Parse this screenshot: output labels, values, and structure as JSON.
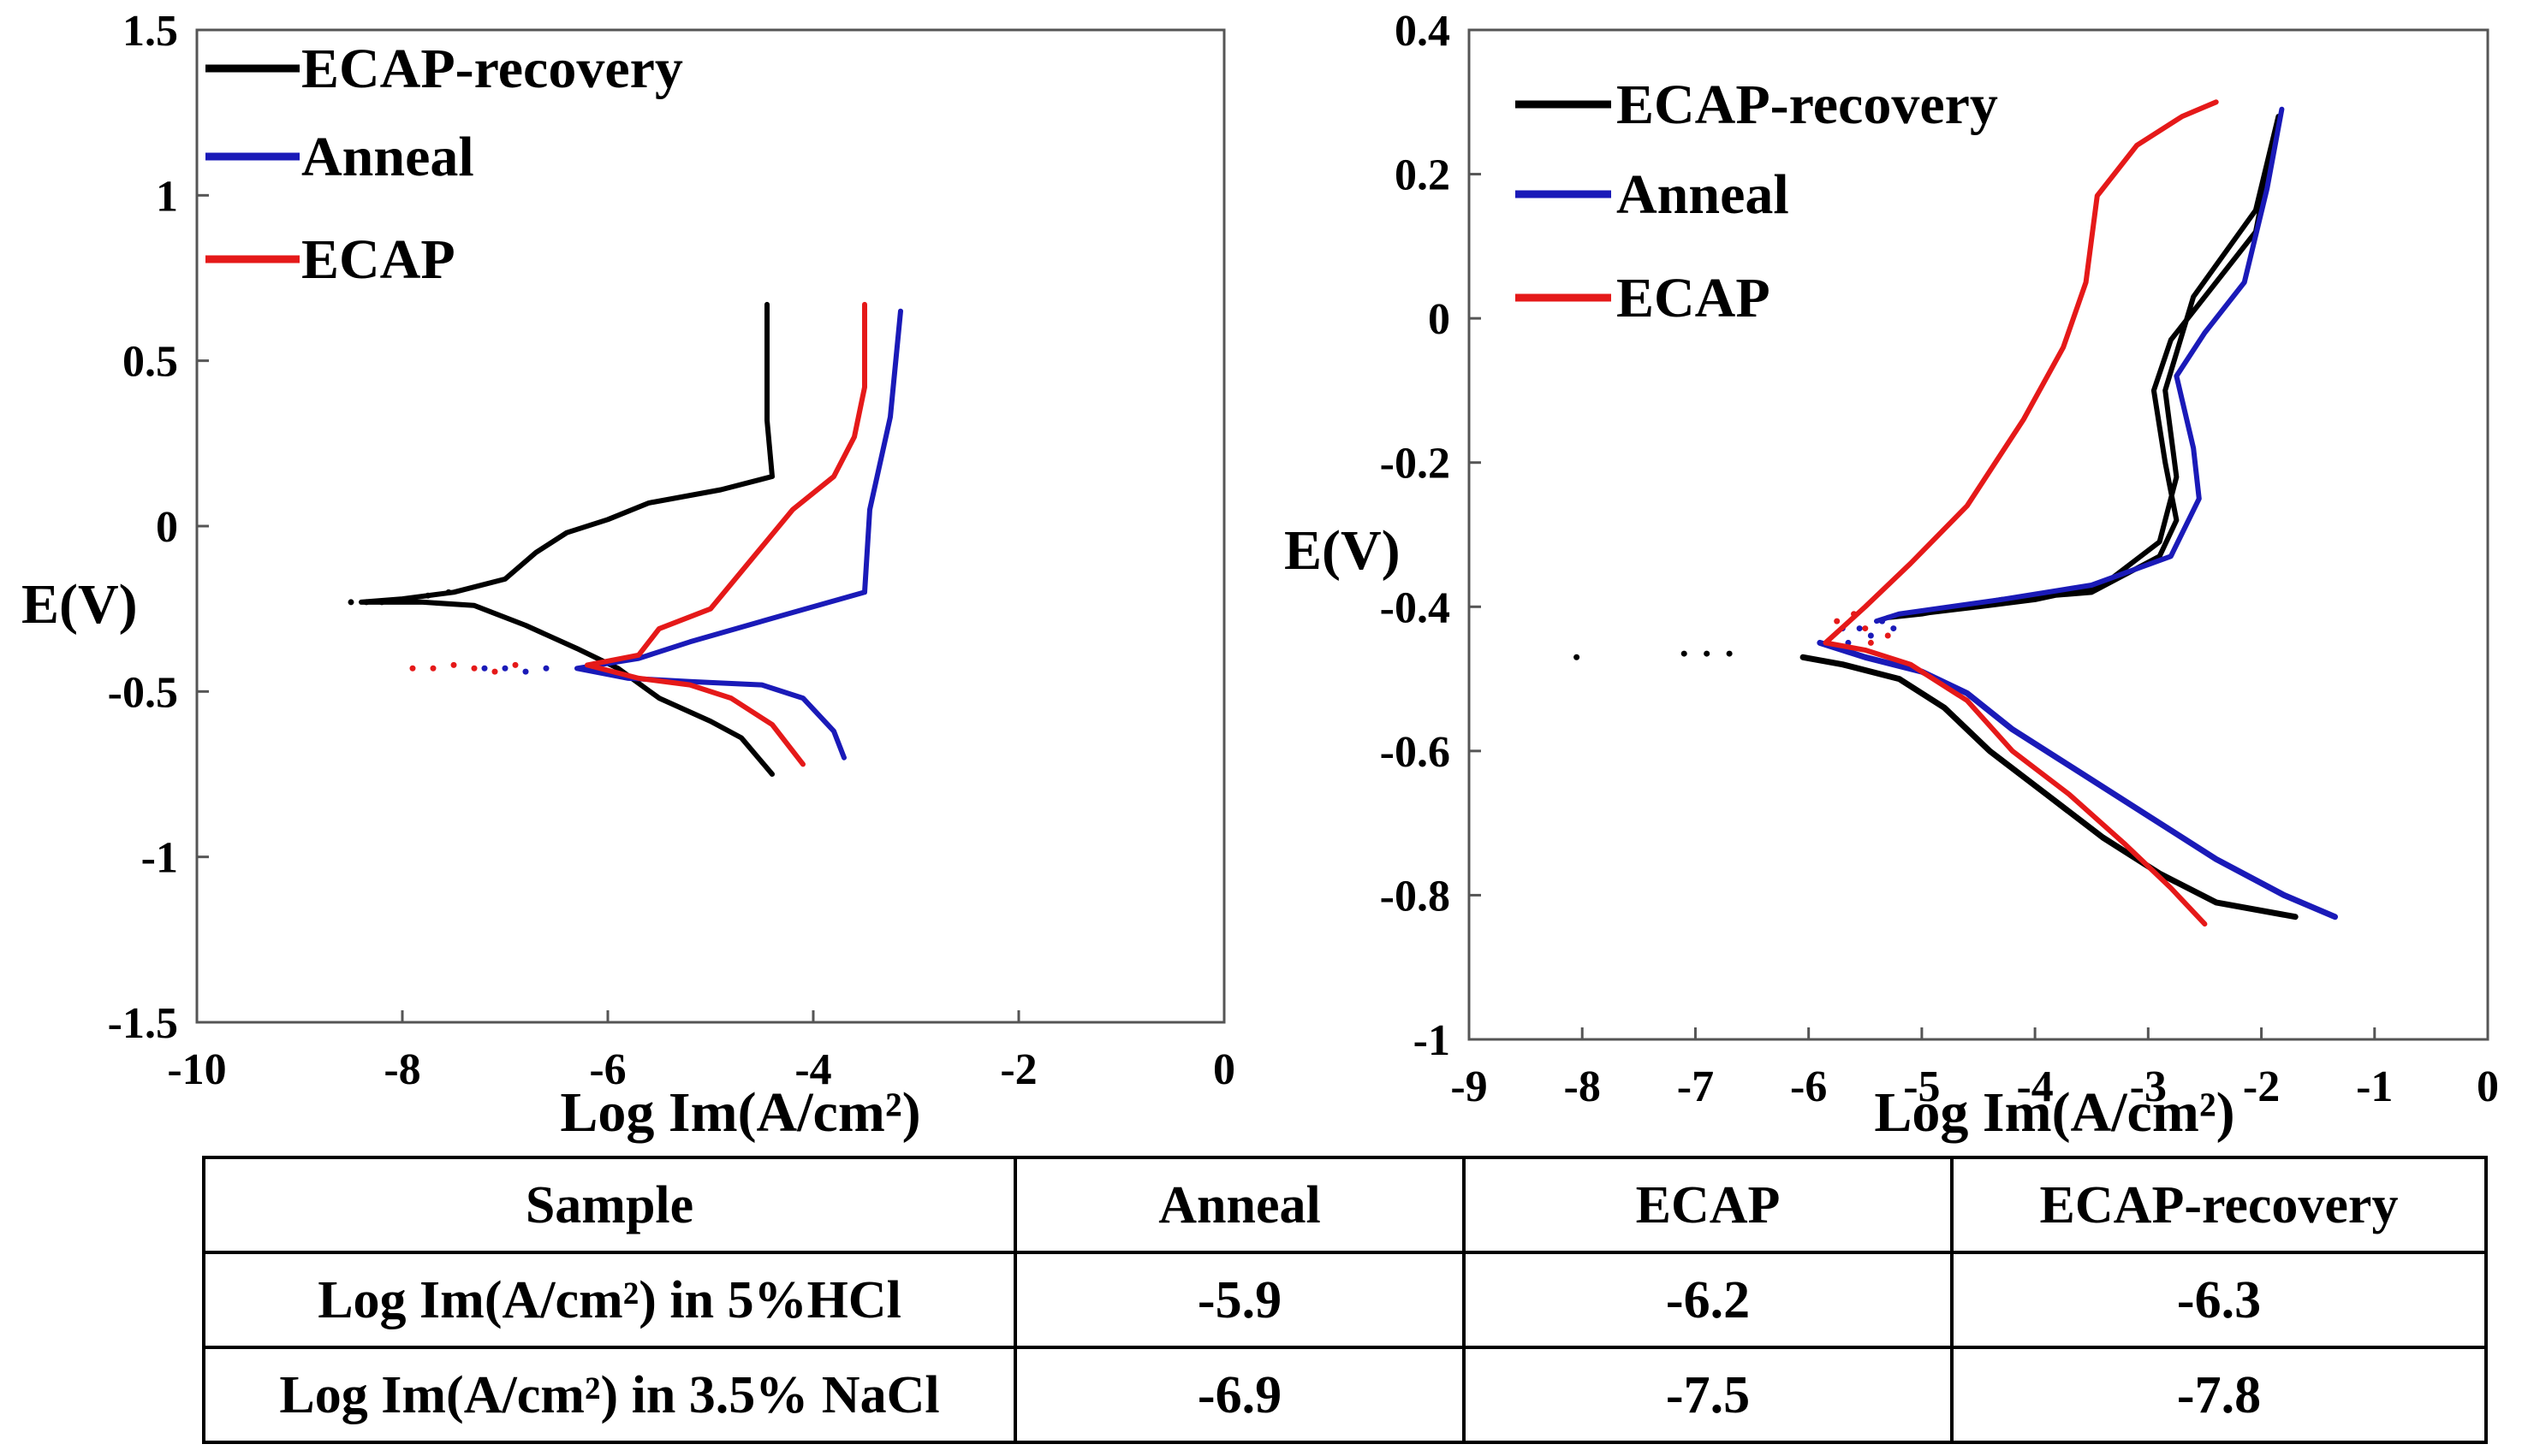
{
  "chart_data": [
    {
      "type": "line",
      "title": "",
      "xlabel": "Log Im(A/cm²)",
      "ylabel": "E(V)",
      "xlim": [
        -10,
        0
      ],
      "ylim": [
        -1.5,
        1.5
      ],
      "xticks": [
        "-10",
        "-8",
        "-6",
        "-4",
        "-2",
        "0"
      ],
      "yticks": [
        "1.5",
        "1",
        "0.5",
        "0",
        "-0.5",
        "-1",
        "-1.5"
      ],
      "grid": false,
      "legend_position": "top-left",
      "series": [
        {
          "name": "ECAP-recovery",
          "color": "#000000",
          "points": [
            [
              -4.45,
              0.67
            ],
            [
              -4.45,
              0.32
            ],
            [
              -4.4,
              0.15
            ],
            [
              -4.9,
              0.11
            ],
            [
              -5.6,
              0.07
            ],
            [
              -6,
              0.02
            ],
            [
              -6.4,
              -0.02
            ],
            [
              -6.7,
              -0.08
            ],
            [
              -7.0,
              -0.16
            ],
            [
              -7.5,
              -0.2
            ],
            [
              -8,
              -0.22
            ],
            [
              -8.4,
              -0.23
            ],
            [
              -7.8,
              -0.23
            ],
            [
              -7.3,
              -0.24
            ],
            [
              -6.8,
              -0.3
            ],
            [
              -6.3,
              -0.37
            ],
            [
              -5.9,
              -0.43
            ],
            [
              -5.5,
              -0.52
            ],
            [
              -5,
              -0.59
            ],
            [
              -4.7,
              -0.64
            ],
            [
              -4.4,
              -0.75
            ]
          ],
          "dotted_points": [
            [
              -8.5,
              -0.23
            ],
            [
              -8.35,
              -0.23
            ],
            [
              -8.2,
              -0.23
            ],
            [
              -7.95,
              -0.22
            ],
            [
              -7.75,
              -0.21
            ],
            [
              -7.55,
              -0.2
            ]
          ]
        },
        {
          "name": "Anneal",
          "color": "#1a1ab8",
          "points": [
            [
              -3.15,
              0.65
            ],
            [
              -3.25,
              0.33
            ],
            [
              -3.45,
              0.05
            ],
            [
              -3.5,
              -0.2
            ],
            [
              -4.3,
              -0.27
            ],
            [
              -5.2,
              -0.35
            ],
            [
              -5.7,
              -0.4
            ],
            [
              -6.3,
              -0.43
            ],
            [
              -5.8,
              -0.46
            ],
            [
              -5.2,
              -0.47
            ],
            [
              -4.5,
              -0.48
            ],
            [
              -4.1,
              -0.52
            ],
            [
              -3.8,
              -0.62
            ],
            [
              -3.7,
              -0.7
            ]
          ],
          "dotted_points": [
            [
              -7.2,
              -0.43
            ],
            [
              -7.0,
              -0.43
            ],
            [
              -6.8,
              -0.44
            ],
            [
              -6.6,
              -0.43
            ]
          ]
        },
        {
          "name": "ECAP",
          "color": "#e51919",
          "points": [
            [
              -3.5,
              0.67
            ],
            [
              -3.5,
              0.42
            ],
            [
              -3.6,
              0.27
            ],
            [
              -3.8,
              0.15
            ],
            [
              -4.2,
              0.05
            ],
            [
              -4.6,
              -0.1
            ],
            [
              -5,
              -0.25
            ],
            [
              -5.5,
              -0.31
            ],
            [
              -5.7,
              -0.39
            ],
            [
              -6.2,
              -0.42
            ],
            [
              -5.7,
              -0.46
            ],
            [
              -5.2,
              -0.48
            ],
            [
              -4.8,
              -0.52
            ],
            [
              -4.4,
              -0.6
            ],
            [
              -4.1,
              -0.72
            ]
          ],
          "dotted_points": [
            [
              -7.9,
              -0.43
            ],
            [
              -7.7,
              -0.43
            ],
            [
              -7.5,
              -0.42
            ],
            [
              -7.3,
              -0.43
            ],
            [
              -7.1,
              -0.44
            ],
            [
              -6.9,
              -0.42
            ]
          ]
        }
      ]
    },
    {
      "type": "line",
      "title": "",
      "xlabel": "Log Im(A/cm²)",
      "ylabel": "E(V)",
      "xlim": [
        -9,
        0
      ],
      "ylim": [
        -1,
        0.4
      ],
      "xticks": [
        "-9",
        "-8",
        "-7",
        "-6",
        "-5",
        "-4",
        "-3",
        "-2",
        "-1",
        "0"
      ],
      "yticks": [
        "0.4",
        "0.2",
        "0",
        "-0.2",
        "-0.4",
        "-0.6",
        "-0.8",
        "-1"
      ],
      "grid": false,
      "legend_position": "top-left",
      "series": [
        {
          "name": "ECAP-recovery",
          "color": "#000000",
          "points": [
            [
              -1.85,
              0.28
            ],
            [
              -1.95,
              0.2
            ],
            [
              -2.05,
              0.12
            ],
            [
              -2.4,
              0.05
            ],
            [
              -2.8,
              -0.03
            ],
            [
              -2.95,
              -0.1
            ],
            [
              -2.85,
              -0.2
            ],
            [
              -2.75,
              -0.28
            ],
            [
              -2.9,
              -0.33
            ],
            [
              -3.5,
              -0.38
            ],
            [
              -4.3,
              -0.39
            ],
            [
              -5,
              -0.41
            ],
            [
              -5.3,
              -0.415
            ],
            [
              -4.5,
              -0.4
            ],
            [
              -4,
              -0.39
            ],
            [
              -3.4,
              -0.37
            ],
            [
              -2.9,
              -0.31
            ],
            [
              -2.75,
              -0.22
            ],
            [
              -2.85,
              -0.1
            ],
            [
              -2.6,
              0.03
            ],
            [
              -2.05,
              0.15
            ],
            [
              -1.85,
              0.28
            ]
          ],
          "dotted_points": [
            [
              -8.05,
              -0.47
            ],
            [
              -7.1,
              -0.465
            ],
            [
              -6.9,
              -0.465
            ],
            [
              -6.7,
              -0.465
            ]
          ],
          "cathodic": [
            [
              -6.05,
              -0.47
            ],
            [
              -5.7,
              -0.48
            ],
            [
              -5.2,
              -0.5
            ],
            [
              -4.8,
              -0.54
            ],
            [
              -4.4,
              -0.6
            ],
            [
              -3.9,
              -0.66
            ],
            [
              -3.4,
              -0.72
            ],
            [
              -2.9,
              -0.77
            ],
            [
              -2.4,
              -0.81
            ],
            [
              -1.7,
              -0.83
            ]
          ]
        },
        {
          "name": "Anneal",
          "color": "#1a1ab8",
          "points": [
            [
              -1.82,
              0.29
            ],
            [
              -1.95,
              0.18
            ],
            [
              -2.15,
              0.05
            ],
            [
              -2.5,
              -0.02
            ],
            [
              -2.75,
              -0.08
            ],
            [
              -2.6,
              -0.18
            ],
            [
              -2.55,
              -0.25
            ],
            [
              -2.8,
              -0.33
            ],
            [
              -3.5,
              -0.37
            ],
            [
              -4.3,
              -0.39
            ],
            [
              -5.2,
              -0.41
            ],
            [
              -5.4,
              -0.42
            ]
          ],
          "dotted_points": [
            [
              -5.7,
              -0.43
            ],
            [
              -5.65,
              -0.45
            ],
            [
              -5.55,
              -0.43
            ],
            [
              -5.45,
              -0.44
            ],
            [
              -5.35,
              -0.42
            ],
            [
              -5.25,
              -0.43
            ]
          ],
          "cathodic": [
            [
              -5.9,
              -0.45
            ],
            [
              -5.5,
              -0.47
            ],
            [
              -5,
              -0.49
            ],
            [
              -4.6,
              -0.52
            ],
            [
              -4.2,
              -0.57
            ],
            [
              -3.6,
              -0.63
            ],
            [
              -3,
              -0.69
            ],
            [
              -2.4,
              -0.75
            ],
            [
              -1.8,
              -0.8
            ],
            [
              -1.35,
              -0.83
            ]
          ]
        },
        {
          "name": "ECAP",
          "color": "#e51919",
          "points": [
            [
              -2.4,
              0.3
            ],
            [
              -2.7,
              0.28
            ],
            [
              -3.1,
              0.24
            ],
            [
              -3.45,
              0.17
            ],
            [
              -3.5,
              0.11
            ],
            [
              -3.55,
              0.05
            ],
            [
              -3.75,
              -0.04
            ],
            [
              -4.1,
              -0.14
            ],
            [
              -4.6,
              -0.26
            ],
            [
              -5.1,
              -0.34
            ],
            [
              -5.5,
              -0.4
            ],
            [
              -5.85,
              -0.45
            ],
            [
              -5.5,
              -0.46
            ],
            [
              -5.1,
              -0.48
            ],
            [
              -4.6,
              -0.53
            ],
            [
              -4.2,
              -0.6
            ],
            [
              -3.7,
              -0.66
            ],
            [
              -3.2,
              -0.73
            ],
            [
              -2.8,
              -0.79
            ],
            [
              -2.5,
              -0.84
            ]
          ],
          "dotted_points": [
            [
              -5.75,
              -0.42
            ],
            [
              -5.6,
              -0.41
            ],
            [
              -5.5,
              -0.43
            ],
            [
              -5.45,
              -0.45
            ],
            [
              -5.3,
              -0.44
            ]
          ]
        }
      ]
    }
  ],
  "table": {
    "header": [
      "Sample",
      "Anneal",
      "ECAP",
      "ECAP-recovery"
    ],
    "rows": [
      [
        "Log Im(A/cm²) in 5%HCl",
        "-5.9",
        "-6.2",
        "-6.3"
      ],
      [
        "Log Im(A/cm²) in 3.5% NaCl",
        "-6.9",
        "-7.5",
        "-7.8"
      ]
    ]
  }
}
